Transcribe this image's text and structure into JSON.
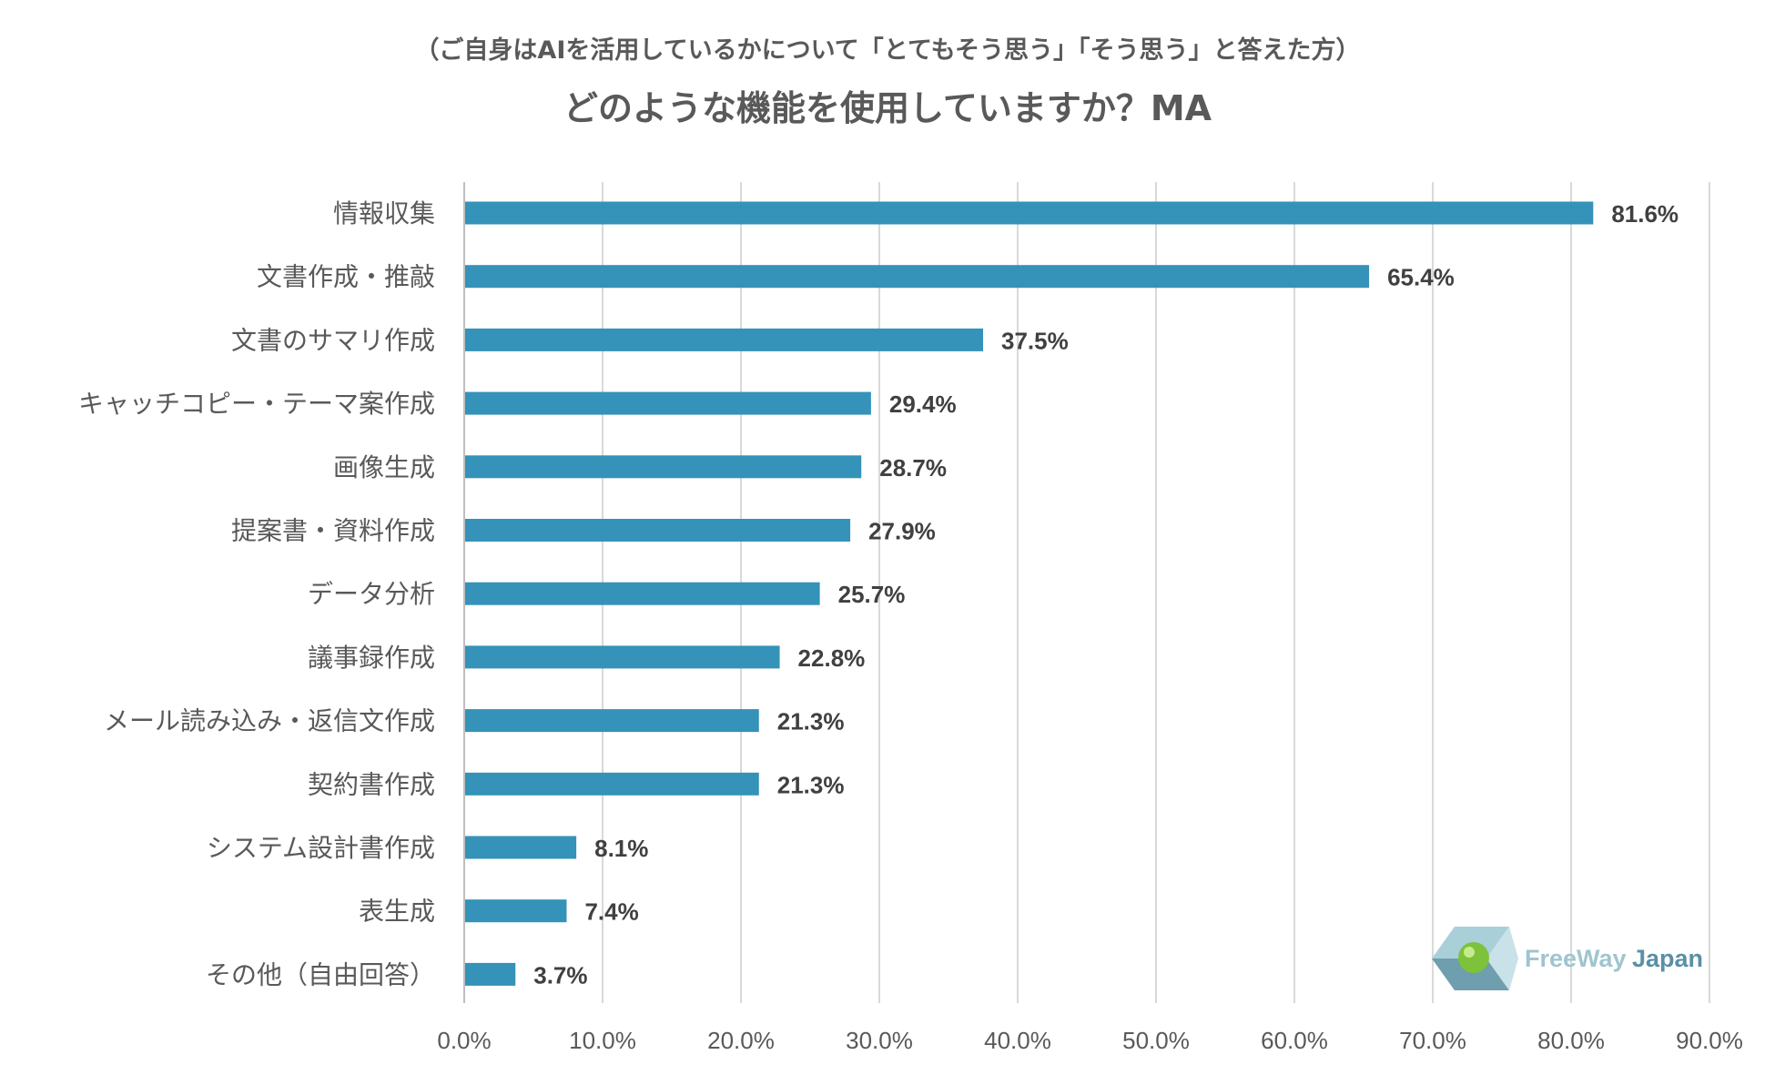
{
  "chart_data": {
    "type": "bar",
    "orientation": "horizontal",
    "subtitle": "（ご自身はAIを活用しているかについて「とてもそう思う」「そう思う」と答えた方）",
    "title": "どのような機能を使用していますか？MA",
    "categories": [
      "情報収集",
      "文書作成・推敲",
      "文書のサマリ作成",
      "キャッチコピー・テーマ案作成",
      "画像生成",
      "提案書・資料作成",
      "データ分析",
      "議事録作成",
      "メール読み込み・返信文作成",
      "契約書作成",
      "システム設計書作成",
      "表生成",
      "その他（自由回答）"
    ],
    "values": [
      81.6,
      65.4,
      37.5,
      29.4,
      28.7,
      27.9,
      25.7,
      22.8,
      21.3,
      21.3,
      8.1,
      7.4,
      3.7
    ],
    "value_labels": [
      "81.6%",
      "65.4%",
      "37.5%",
      "29.4%",
      "28.7%",
      "27.9%",
      "25.7%",
      "22.8%",
      "21.3%",
      "21.3%",
      "8.1%",
      "7.4%",
      "3.7%"
    ],
    "xlim": [
      0,
      90
    ],
    "x_ticks": [
      "0.0%",
      "10.0%",
      "20.0%",
      "30.0%",
      "40.0%",
      "50.0%",
      "60.0%",
      "70.0%",
      "80.0%",
      "90.0%"
    ],
    "xlabel": "",
    "ylabel": "",
    "grid": true,
    "bar_color": "#3592b8"
  },
  "logo": {
    "text_part1": "FreeWay",
    "text_part2": "Japan"
  }
}
